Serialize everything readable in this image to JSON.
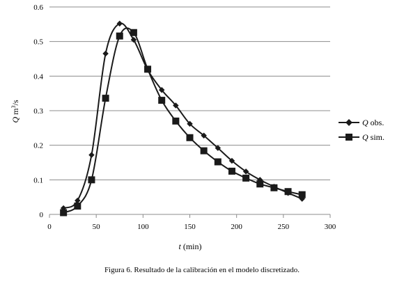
{
  "chart_data": {
    "type": "line",
    "xlabel_var": "t",
    "xlabel_unit": "(min)",
    "ylabel_var": "Q",
    "ylabel_unit_base": "m",
    "ylabel_unit_exp": "3",
    "ylabel_unit_tail": "/s",
    "xlim": [
      0,
      300
    ],
    "ylim": [
      0,
      0.6
    ],
    "xticks": [
      "0",
      "50",
      "100",
      "150",
      "200",
      "250",
      "300"
    ],
    "yticks": [
      "0",
      "0.1",
      "0.2",
      "0.3",
      "0.4",
      "0.5",
      "0.6"
    ],
    "grid": "horizontal",
    "legend_position": "right",
    "series": [
      {
        "name_var": "Q",
        "name_rest": " obs.",
        "marker": "diamond",
        "color": "#1a1a1a",
        "x": [
          15,
          30,
          45,
          60,
          75,
          90,
          105,
          120,
          135,
          150,
          165,
          180,
          195,
          210,
          225,
          240,
          255,
          270
        ],
        "y": [
          0.018,
          0.04,
          0.172,
          0.465,
          0.552,
          0.505,
          0.418,
          0.36,
          0.315,
          0.262,
          0.228,
          0.192,
          0.155,
          0.124,
          0.1,
          0.08,
          0.062,
          0.045
        ]
      },
      {
        "name_var": "Q",
        "name_rest": " sim.",
        "marker": "square",
        "color": "#1a1a1a",
        "x": [
          15,
          30,
          45,
          60,
          75,
          90,
          105,
          120,
          135,
          150,
          165,
          180,
          195,
          210,
          225,
          240,
          255,
          270
        ],
        "y": [
          0.005,
          0.024,
          0.1,
          0.336,
          0.516,
          0.526,
          0.42,
          0.33,
          0.27,
          0.222,
          0.184,
          0.152,
          0.125,
          0.105,
          0.088,
          0.077,
          0.066,
          0.057
        ]
      }
    ]
  },
  "caption": "Figura 6. Resultado de la calibración en el modelo discretizado."
}
